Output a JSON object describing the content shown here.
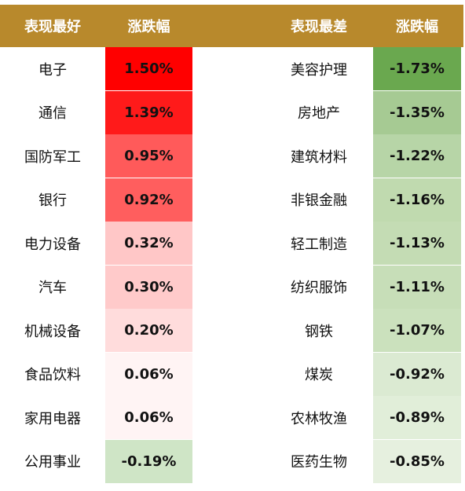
{
  "headers": {
    "best": "表现最好",
    "best_change": "涨跌幅",
    "worst": "表现最差",
    "worst_change": "涨跌幅"
  },
  "colors": {
    "header_bg": "#b8892c",
    "header_text": "#ffffff"
  },
  "best": [
    {
      "name": "电子",
      "value": "1.50%",
      "color": "#ff0000"
    },
    {
      "name": "通信",
      "value": "1.39%",
      "color": "#ff1a1a"
    },
    {
      "name": "国防军工",
      "value": "0.95%",
      "color": "#ff5a5a"
    },
    {
      "name": "银行",
      "value": "0.92%",
      "color": "#ff5e5e"
    },
    {
      "name": "电力设备",
      "value": "0.32%",
      "color": "#ffc7c7"
    },
    {
      "name": "汽车",
      "value": "0.30%",
      "color": "#ffcaca"
    },
    {
      "name": "机械设备",
      "value": "0.20%",
      "color": "#ffdcdc"
    },
    {
      "name": "食品饮料",
      "value": "0.06%",
      "color": "#fff4f4"
    },
    {
      "name": "家用电器",
      "value": "0.06%",
      "color": "#fff4f4"
    },
    {
      "name": "公用事业",
      "value": "-0.19%",
      "color": "#cfe5c6"
    }
  ],
  "worst": [
    {
      "name": "美容护理",
      "value": "-1.73%",
      "color": "#6aa84f"
    },
    {
      "name": "房地产",
      "value": "-1.35%",
      "color": "#a6ca93"
    },
    {
      "name": "建筑材料",
      "value": "-1.22%",
      "color": "#b7d5a7"
    },
    {
      "name": "非银金融",
      "value": "-1.16%",
      "color": "#c0daaf"
    },
    {
      "name": "轻工制造",
      "value": "-1.13%",
      "color": "#c4dcb4"
    },
    {
      "name": "纺织服饰",
      "value": "-1.11%",
      "color": "#c7deb8"
    },
    {
      "name": "钢铁",
      "value": "-1.07%",
      "color": "#cbe1bd"
    },
    {
      "name": "煤炭",
      "value": "-0.92%",
      "color": "#dbead2"
    },
    {
      "name": "农林牧渔",
      "value": "-0.89%",
      "color": "#e1eed9"
    },
    {
      "name": "医药生物",
      "value": "-0.85%",
      "color": "#e6f0df"
    }
  ]
}
